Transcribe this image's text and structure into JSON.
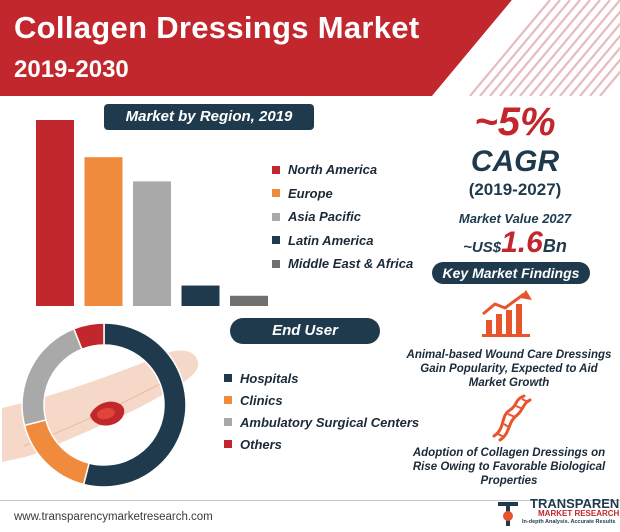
{
  "header": {
    "title": "Collagen Dressings Market",
    "subtitle": "2019-2030"
  },
  "region_section": {
    "pill_label": "Market by Region, 2019",
    "legend": [
      {
        "label": "North America",
        "color": "#c1272d"
      },
      {
        "label": "Europe",
        "color": "#f08a3c"
      },
      {
        "label": "Asia Pacific",
        "color": "#a9a9a9"
      },
      {
        "label": "Latin America",
        "color": "#1f3a4d"
      },
      {
        "label": "Middle East & Africa",
        "color": "#707070"
      }
    ]
  },
  "end_user_section": {
    "pill_label": "End User",
    "legend": [
      {
        "label": "Hospitals",
        "color": "#1f3a4d"
      },
      {
        "label": "Clinics",
        "color": "#f08a3c"
      },
      {
        "label": "Ambulatory Surgical Centers",
        "color": "#a9a9a9"
      },
      {
        "label": "Others",
        "color": "#c1272d"
      }
    ]
  },
  "cagr": {
    "value": "~5%",
    "label": "CAGR",
    "period": "(2019-2027)"
  },
  "market_value": {
    "label": "Market Value 2027",
    "prefix": "~US$",
    "value": "1.6",
    "unit": "Bn"
  },
  "findings": {
    "pill_label": "Key Market Findings",
    "items": [
      {
        "text": "Animal-based Wound Care Dressings Gain Popularity, Expected to Aid Market Growth",
        "icon": "bar-growth-icon"
      },
      {
        "text": "Adoption of Collagen Dressings on Rise Owing to Favorable Biological Properties",
        "icon": "dna-icon"
      }
    ]
  },
  "footer": {
    "url": "www.transparencymarketresearch.com",
    "logo_name": "TRANSPARENCY",
    "logo_sub": "MARKET RESEARCH",
    "logo_tagline": "In-depth Analysis. Accurate Results"
  },
  "chart_data": [
    {
      "type": "bar",
      "categories": [
        "North America",
        "Europe",
        "Asia Pacific",
        "Latin America",
        "Middle East & Africa"
      ],
      "values": [
        100,
        80,
        67,
        11,
        5.5
      ],
      "colors": [
        "#c1272d",
        "#f08a3c",
        "#a9a9a9",
        "#1f3a4d",
        "#707070"
      ],
      "grid": false,
      "axes": false,
      "legend": "right"
    },
    {
      "type": "pie",
      "donut": true,
      "categories": [
        "Hospitals",
        "Clinics",
        "Ambulatory Surgical Centers",
        "Others"
      ],
      "values": [
        54,
        17,
        23,
        6
      ],
      "colors": [
        "#1f3a4d",
        "#f08a3c",
        "#a9a9a9",
        "#c1272d"
      ],
      "legend": "right"
    }
  ]
}
